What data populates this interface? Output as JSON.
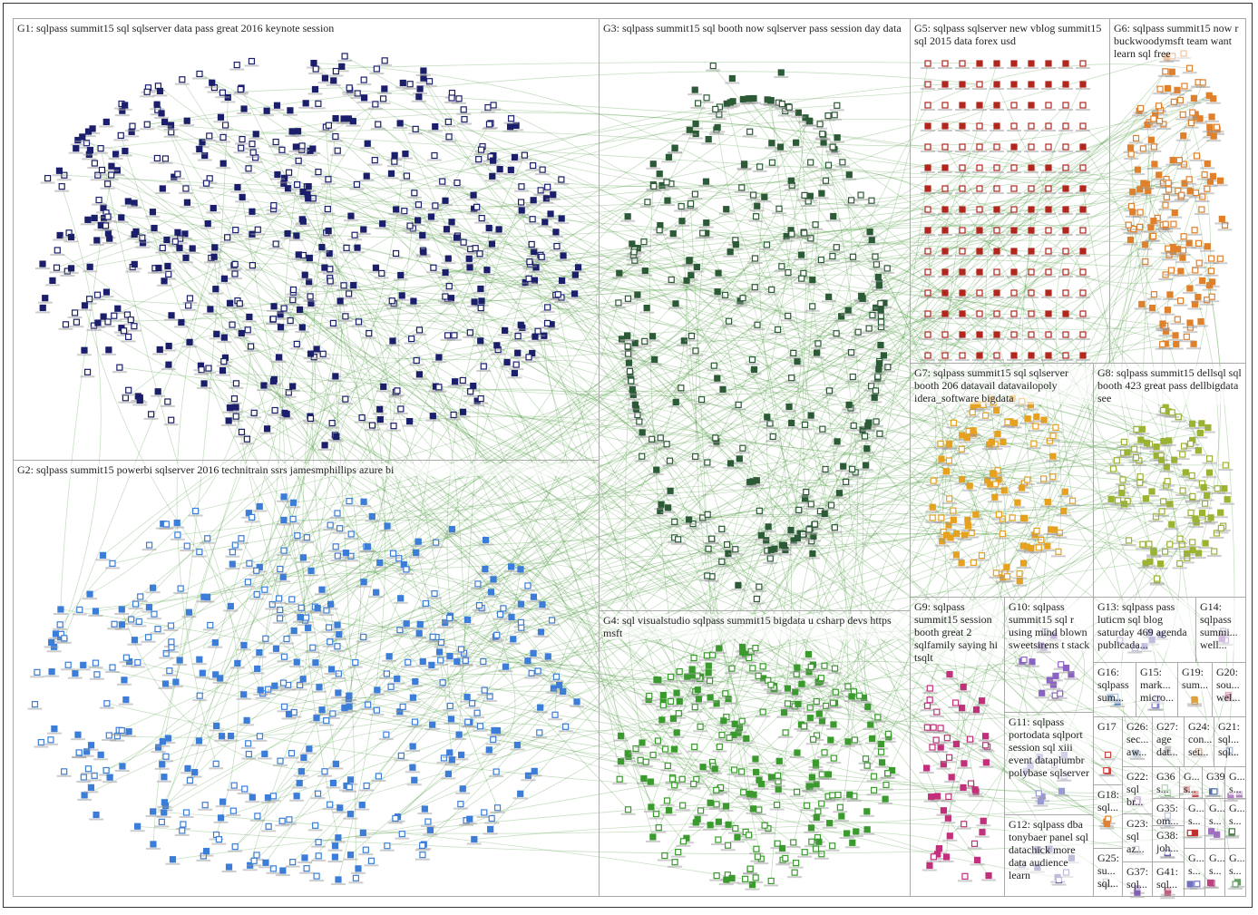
{
  "groups": [
    {
      "label": "G1: sqlpass summit15 sql sqlserver data pass great 2016 keynote session"
    },
    {
      "label": "G2: sqlpass summit15 powerbi sqlserver 2016 technitrain ssrs jamesmphillips azure bi"
    },
    {
      "label": "G3: sqlpass summit15 sql booth now sqlserver pass session day data"
    },
    {
      "label": "G4: sql visualstudio sqlpass summit15 bigdata u csharp devs https msft"
    },
    {
      "label": "G5: sqlpass sqlserver new vblog summit15 sql 2015 data forex usd"
    },
    {
      "label": "G6: sqlpass summit15 now r buckwoodymsft team want learn sql free"
    },
    {
      "label": "G7: sqlpass summit15 sql sqlserver booth 206 datavail datavailopoly idera_software bigdata"
    },
    {
      "label": "G8: sqlpass summit15 dellsql sql booth 423 great pass dellbigdata see"
    },
    {
      "label": "G9: sqlpass summit15 session booth great 2 sqlfamily saying hi tsqlt"
    },
    {
      "label": "G10: sqlpass summit15 sql r using mind blown sweetsirens t stack"
    },
    {
      "label": "G11: sqlpass portodata sqlport session sql xiii event dataplumbr polybase sqlserver"
    },
    {
      "label": "G12: sqlpass dba tonybaer panel sql datachick more data audience learn"
    },
    {
      "label": "G13: sqlpass pass luticm sql blog saturday 469 agenda publicada..."
    },
    {
      "label": "G14: sqlpass summi... well..."
    },
    {
      "label": "G16: sqlpass sum..."
    },
    {
      "label": "G15: mark... micro..."
    },
    {
      "label": "G19: sum..."
    },
    {
      "label": "G20: sou... wel..."
    },
    {
      "label": "G17"
    },
    {
      "label": "G26: sec... aw..."
    },
    {
      "label": "G27: age dat..."
    },
    {
      "label": "G24: con... set..."
    },
    {
      "label": "G21: sql... sql..."
    },
    {
      "label": "G22: sql br..."
    },
    {
      "label": "G36 s..."
    },
    {
      "label": "G... s..."
    },
    {
      "label": "G39"
    },
    {
      "label": "G... s..."
    },
    {
      "label": "G18: sql..."
    },
    {
      "label": "G35: om..."
    },
    {
      "label": "G23: sql az..."
    },
    {
      "label": "G38: joh..."
    },
    {
      "label": "G25: su... sql..."
    },
    {
      "label": "G37: sql..."
    },
    {
      "label": "G41: sql..."
    },
    {
      "label": "G... s..."
    },
    {
      "label": "G... s..."
    },
    {
      "label": "G... s..."
    },
    {
      "label": "G... s..."
    },
    {
      "label": "G... s..."
    },
    {
      "label": "G... s..."
    }
  ]
}
